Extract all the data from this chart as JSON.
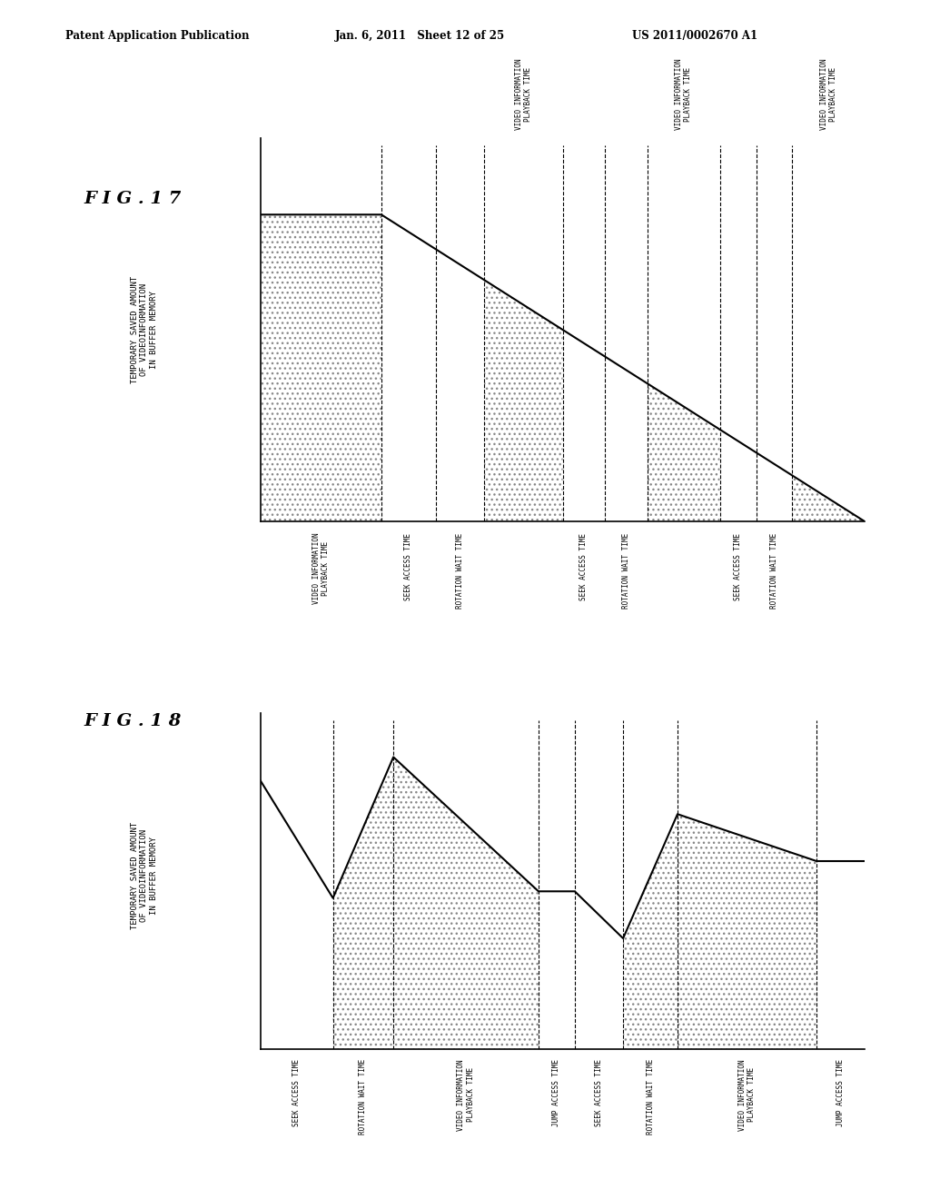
{
  "header_left": "Patent Application Publication",
  "header_mid": "Jan. 6, 2011   Sheet 12 of 25",
  "header_right": "US 2011/0002670 A1",
  "fig17_title": "FIG.17",
  "fig18_title": "FIG.18",
  "fig17_ylabel": "TEMPORARY SAVED AMOUNT\nOF VIDEOINFORMATION\nIN BUFFER MEMORY",
  "fig18_ylabel": "TEMPORARY SAVED AMOUNT\nOF VIDEOINFORMATION\nIN BUFFER MEMORY",
  "bg_color": "#ffffff"
}
